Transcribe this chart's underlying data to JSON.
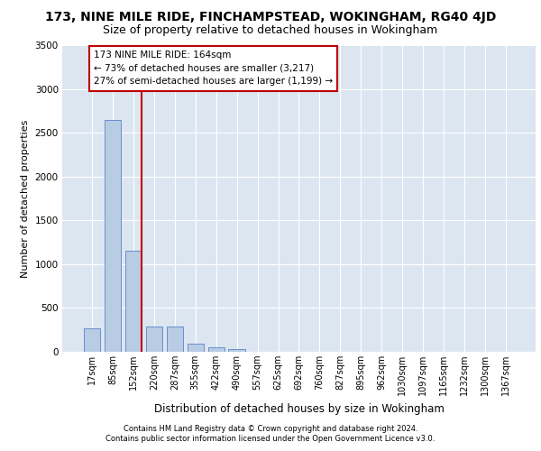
{
  "title1": "173, NINE MILE RIDE, FINCHAMPSTEAD, WOKINGHAM, RG40 4JD",
  "title2": "Size of property relative to detached houses in Wokingham",
  "xlabel": "Distribution of detached houses by size in Wokingham",
  "ylabel": "Number of detached properties",
  "categories": [
    "17sqm",
    "85sqm",
    "152sqm",
    "220sqm",
    "287sqm",
    "355sqm",
    "422sqm",
    "490sqm",
    "557sqm",
    "625sqm",
    "692sqm",
    "760sqm",
    "827sqm",
    "895sqm",
    "962sqm",
    "1030sqm",
    "1097sqm",
    "1165sqm",
    "1232sqm",
    "1300sqm",
    "1367sqm"
  ],
  "values": [
    270,
    2650,
    1150,
    290,
    285,
    90,
    55,
    35,
    0,
    0,
    0,
    0,
    0,
    0,
    0,
    0,
    0,
    0,
    0,
    0,
    0
  ],
  "bar_color": "#b8cce4",
  "bar_edge_color": "#4472c4",
  "vline_color": "#c00000",
  "vline_position": 2.4,
  "annotation_text": "173 NINE MILE RIDE: 164sqm\n← 73% of detached houses are smaller (3,217)\n27% of semi-detached houses are larger (1,199) →",
  "annotation_box_facecolor": "#ffffff",
  "annotation_box_edgecolor": "#c00000",
  "ylim": [
    0,
    3500
  ],
  "yticks": [
    0,
    500,
    1000,
    1500,
    2000,
    2500,
    3000,
    3500
  ],
  "grid_color": "#ffffff",
  "fig_bg_color": "#ffffff",
  "plot_bg_color": "#dce6f1",
  "footnote1": "Contains HM Land Registry data © Crown copyright and database right 2024.",
  "footnote2": "Contains public sector information licensed under the Open Government Licence v3.0.",
  "title1_fontsize": 10,
  "title2_fontsize": 9,
  "ylabel_fontsize": 8,
  "xlabel_fontsize": 8.5,
  "tick_fontsize": 7,
  "annot_fontsize": 7.5,
  "footnote_fontsize": 6
}
